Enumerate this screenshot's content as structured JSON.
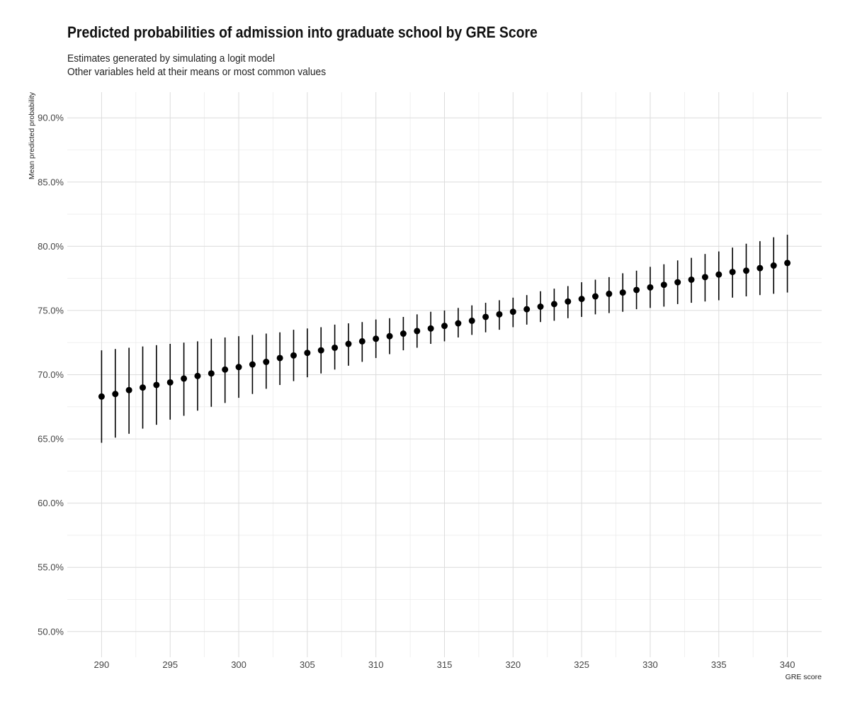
{
  "chart_data": {
    "type": "scatter",
    "title": "Predicted probabilities of admission into graduate school by GRE Score",
    "subtitle_lines": [
      "Estimates generated by simulating a logit model",
      "Other variables held at their means or most common values"
    ],
    "xlabel": "GRE score",
    "ylabel": "Mean predicted probability",
    "xlim": [
      287.5,
      342.5
    ],
    "ylim": [
      48.0,
      92.0
    ],
    "x_ticks": [
      290,
      295,
      300,
      305,
      310,
      315,
      320,
      325,
      330,
      335,
      340
    ],
    "x_tick_labels": [
      "290",
      "295",
      "300",
      "305",
      "310",
      "315",
      "320",
      "325",
      "330",
      "335",
      "340"
    ],
    "y_ticks": [
      50,
      55,
      60,
      65,
      70,
      75,
      80,
      85,
      90
    ],
    "y_tick_labels": [
      "50.0%",
      "55.0%",
      "60.0%",
      "65.0%",
      "70.0%",
      "75.0%",
      "80.0%",
      "85.0%",
      "90.0%"
    ],
    "grid": true,
    "legend": "none",
    "point_color": "#000000",
    "x": [
      290,
      291,
      292,
      293,
      294,
      295,
      296,
      297,
      298,
      299,
      300,
      301,
      302,
      303,
      304,
      305,
      306,
      307,
      308,
      309,
      310,
      311,
      312,
      313,
      314,
      315,
      316,
      317,
      318,
      319,
      320,
      321,
      322,
      323,
      324,
      325,
      326,
      327,
      328,
      329,
      330,
      331,
      332,
      333,
      334,
      335,
      336,
      337,
      338,
      339,
      340
    ],
    "mean": [
      68.3,
      68.5,
      68.8,
      69.0,
      69.2,
      69.4,
      69.7,
      69.9,
      70.1,
      70.4,
      70.6,
      70.8,
      71.0,
      71.3,
      71.5,
      71.7,
      71.9,
      72.1,
      72.4,
      72.6,
      72.8,
      73.0,
      73.2,
      73.4,
      73.6,
      73.8,
      74.0,
      74.2,
      74.5,
      74.7,
      74.9,
      75.1,
      75.3,
      75.5,
      75.7,
      75.9,
      76.1,
      76.3,
      76.4,
      76.6,
      76.8,
      77.0,
      77.2,
      77.4,
      77.6,
      77.8,
      78.0,
      78.1,
      78.3,
      78.5,
      78.7
    ],
    "lower": [
      64.7,
      65.1,
      65.4,
      65.8,
      66.1,
      66.5,
      66.8,
      67.2,
      67.5,
      67.8,
      68.2,
      68.5,
      68.9,
      69.2,
      69.5,
      69.8,
      70.1,
      70.4,
      70.7,
      71.0,
      71.3,
      71.6,
      71.9,
      72.1,
      72.4,
      72.6,
      72.9,
      73.1,
      73.3,
      73.5,
      73.7,
      73.9,
      74.1,
      74.2,
      74.4,
      74.5,
      74.7,
      74.8,
      74.9,
      75.1,
      75.2,
      75.3,
      75.5,
      75.6,
      75.7,
      75.8,
      76.0,
      76.1,
      76.2,
      76.3,
      76.4
    ],
    "upper": [
      71.9,
      72.0,
      72.1,
      72.2,
      72.3,
      72.4,
      72.5,
      72.6,
      72.8,
      72.9,
      73.0,
      73.1,
      73.2,
      73.3,
      73.5,
      73.6,
      73.7,
      73.9,
      74.0,
      74.1,
      74.3,
      74.4,
      74.5,
      74.7,
      74.9,
      75.0,
      75.2,
      75.4,
      75.6,
      75.8,
      76.0,
      76.2,
      76.5,
      76.7,
      76.9,
      77.2,
      77.4,
      77.6,
      77.9,
      78.1,
      78.4,
      78.6,
      78.9,
      79.1,
      79.4,
      79.6,
      79.9,
      80.2,
      80.4,
      80.7,
      80.9
    ]
  }
}
